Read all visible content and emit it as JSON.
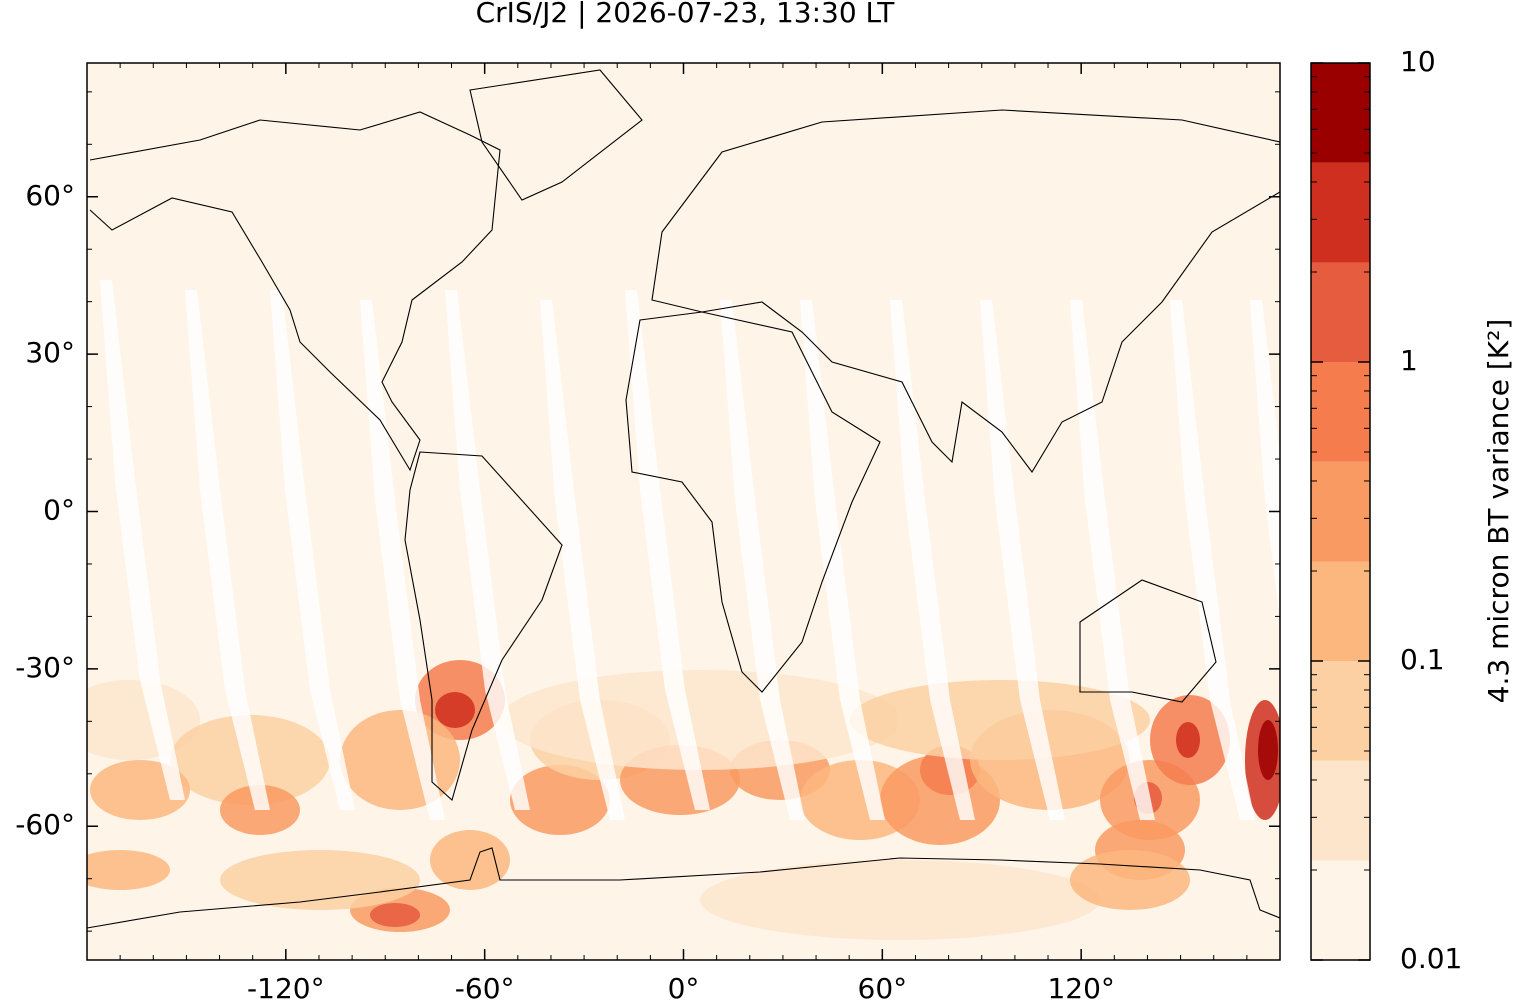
{
  "chart_data": {
    "type": "map",
    "title": "CrIS/J2 | 2026-07-23, 13:30 LT",
    "xlim": [
      -180,
      180
    ],
    "ylim": [
      -85.5,
      85.5
    ],
    "xticks": [
      {
        "value": -120,
        "label": "-120°"
      },
      {
        "value": -60,
        "label": "-60°"
      },
      {
        "value": 0,
        "label": "0°"
      },
      {
        "value": 60,
        "label": "60°"
      },
      {
        "value": 120,
        "label": "120°"
      }
    ],
    "yticks": [
      {
        "value": 60,
        "label": "60°"
      },
      {
        "value": 30,
        "label": "30°"
      },
      {
        "value": 0,
        "label": "0°"
      },
      {
        "value": -30,
        "label": "-30°"
      },
      {
        "value": -60,
        "label": "-60°"
      }
    ],
    "colorbar": {
      "label": "4.3 micron BT variance [K²]",
      "scale": "log",
      "lim": [
        0.01,
        10
      ],
      "ticks": [
        0.01,
        0.1,
        1,
        10
      ],
      "levels": [
        0.01,
        0.0215,
        0.0464,
        0.1,
        0.215,
        0.464,
        1,
        2.15,
        4.64,
        10
      ],
      "colors": [
        "#fff4e8",
        "#fde5cc",
        "#fcd0a2",
        "#fcb77f",
        "#f99a62",
        "#f47c4d",
        "#e55c3e",
        "#cf2f1f",
        "#9b0000"
      ]
    }
  }
}
